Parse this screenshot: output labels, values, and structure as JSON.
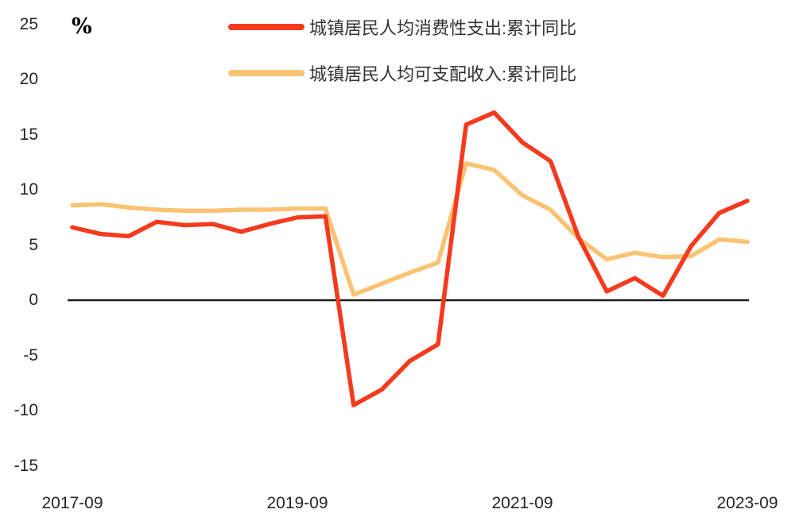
{
  "chart_data": {
    "type": "line",
    "title": "",
    "ylabel": "%",
    "grid": false,
    "legend_position": "top",
    "ylim": [
      -15,
      25
    ],
    "yticks": [
      25,
      20,
      15,
      10,
      5,
      0,
      -5,
      -10,
      -15
    ],
    "xtick_labels": [
      "2017-09",
      "2019-09",
      "2021-09",
      "2023-09"
    ],
    "zero_line_color": "#1a1a1a",
    "categories": [
      "2017-09",
      "2017-12",
      "2018-03",
      "2018-06",
      "2018-09",
      "2018-12",
      "2019-03",
      "2019-06",
      "2019-09",
      "2019-12",
      "2020-03",
      "2020-06",
      "2020-09",
      "2020-12",
      "2021-03",
      "2021-06",
      "2021-09",
      "2021-12",
      "2022-03",
      "2022-06",
      "2022-09",
      "2022-12",
      "2023-03",
      "2023-06",
      "2023-09"
    ],
    "series": [
      {
        "name": "城镇居民人均消费性支出:累计同比",
        "color": "#f53a1e",
        "values": [
          6.6,
          6.0,
          5.8,
          7.1,
          6.8,
          6.9,
          6.2,
          6.9,
          7.5,
          7.6,
          -9.5,
          -8.1,
          -5.5,
          -4.0,
          15.9,
          17.0,
          14.3,
          12.6,
          5.7,
          0.8,
          2.0,
          0.4,
          4.9,
          7.9,
          9.0
        ]
      },
      {
        "name": "城镇居民人均可支配收入:累计同比",
        "color": "#fac373",
        "values": [
          8.6,
          8.7,
          8.4,
          8.2,
          8.1,
          8.1,
          8.2,
          8.2,
          8.3,
          8.3,
          0.5,
          1.5,
          2.5,
          3.4,
          12.4,
          11.8,
          9.5,
          8.2,
          5.6,
          3.7,
          4.3,
          3.9,
          4.0,
          5.5,
          5.3
        ]
      }
    ]
  }
}
